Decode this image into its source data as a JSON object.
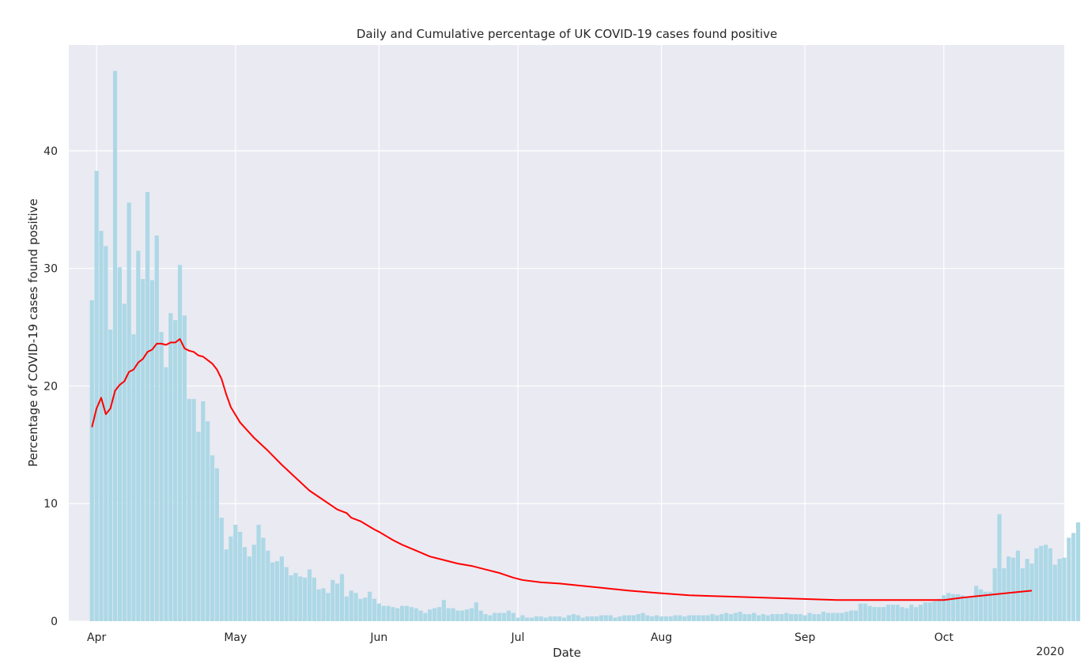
{
  "chart_data": {
    "type": "bar",
    "title": "Daily and Cumulative percentage of UK COVID-19 cases found positive",
    "xlabel": "Date",
    "ylabel": "Percentage of COVID-19 cases found positive",
    "year_label": "2020",
    "ylim": [
      0,
      49
    ],
    "yticks": [
      0,
      10,
      20,
      30,
      40
    ],
    "grid": true,
    "x_start": "2020-03-31",
    "x_end": "2020-10-20",
    "xlim": [
      "2020-03-26",
      "2020-10-27"
    ],
    "xticks": [
      {
        "date": "2020-04-01",
        "label": "Apr"
      },
      {
        "date": "2020-05-01",
        "label": "May"
      },
      {
        "date": "2020-06-01",
        "label": "Jun"
      },
      {
        "date": "2020-07-01",
        "label": "Jul"
      },
      {
        "date": "2020-08-01",
        "label": "Aug"
      },
      {
        "date": "2020-09-01",
        "label": "Sep"
      },
      {
        "date": "2020-10-01",
        "label": "Oct"
      }
    ],
    "colors": {
      "bars": "#add8e6",
      "line": "#ff0000",
      "background": "#eaeaf2",
      "grid": "#ffffff"
    },
    "series": [
      {
        "type": "bar",
        "values": [
          27.3,
          38.3,
          33.2,
          31.9,
          24.8,
          46.8,
          30.1,
          27.0,
          35.6,
          24.4,
          31.5,
          29.1,
          36.5,
          29.0,
          32.8,
          24.6,
          21.6,
          26.2,
          25.6,
          30.3,
          26.0,
          18.9,
          18.9,
          16.1,
          18.7,
          17.0,
          14.1,
          13.0,
          8.8,
          6.1,
          7.2,
          8.2,
          7.6,
          6.3,
          5.5,
          6.5,
          8.2,
          7.1,
          6.0,
          5.0,
          5.1,
          5.5,
          4.6,
          3.9,
          4.1,
          3.8,
          3.7,
          4.4,
          3.7,
          2.7,
          2.8,
          2.4,
          3.5,
          3.2,
          4.0,
          2.1,
          2.6,
          2.4,
          1.9,
          2.0,
          2.5,
          1.9,
          1.5,
          1.3,
          1.3,
          1.2,
          1.1,
          1.3,
          1.3,
          1.2,
          1.1,
          0.9,
          0.7,
          1.0,
          1.1,
          1.2,
          1.8,
          1.1,
          1.1,
          0.9,
          0.9,
          1.0,
          1.1,
          1.6,
          0.9,
          0.6,
          0.5,
          0.7,
          0.7,
          0.7,
          0.9,
          0.7,
          0.3,
          0.5,
          0.3,
          0.3,
          0.4,
          0.4,
          0.3,
          0.4,
          0.4,
          0.4,
          0.3,
          0.5,
          0.6,
          0.5,
          0.3,
          0.4,
          0.4,
          0.4,
          0.5,
          0.5,
          0.5,
          0.3,
          0.4,
          0.5,
          0.5,
          0.5,
          0.6,
          0.7,
          0.5,
          0.4,
          0.5,
          0.4,
          0.4,
          0.4,
          0.5,
          0.5,
          0.4,
          0.5,
          0.5,
          0.5,
          0.5,
          0.5,
          0.6,
          0.5,
          0.6,
          0.7,
          0.6,
          0.7,
          0.8,
          0.6,
          0.6,
          0.7,
          0.5,
          0.6,
          0.5,
          0.6,
          0.6,
          0.6,
          0.7,
          0.6,
          0.6,
          0.6,
          0.5,
          0.7,
          0.6,
          0.6,
          0.8,
          0.7,
          0.7,
          0.7,
          0.7,
          0.8,
          0.9,
          0.9,
          1.5,
          1.5,
          1.3,
          1.2,
          1.2,
          1.2,
          1.4,
          1.4,
          1.4,
          1.2,
          1.1,
          1.4,
          1.2,
          1.4,
          1.6,
          1.6,
          1.7,
          1.9,
          2.2,
          2.4,
          2.3,
          2.3,
          2.2,
          2.0,
          2.1,
          3.0,
          2.7,
          2.5,
          2.5,
          4.5,
          9.1,
          4.5,
          5.5,
          5.4,
          6.0,
          4.5,
          5.3,
          4.9,
          6.2,
          6.4,
          6.5,
          6.2,
          4.8,
          5.3,
          5.4,
          7.1,
          7.5,
          8.4
        ]
      },
      {
        "type": "line",
        "x": [
          "2020-03-31",
          "2020-04-01",
          "2020-04-02",
          "2020-04-03",
          "2020-04-04",
          "2020-04-05",
          "2020-04-06",
          "2020-04-07",
          "2020-04-08",
          "2020-04-09",
          "2020-04-10",
          "2020-04-11",
          "2020-04-12",
          "2020-04-13",
          "2020-04-14",
          "2020-04-15",
          "2020-04-16",
          "2020-04-17",
          "2020-04-18",
          "2020-04-19",
          "2020-04-20",
          "2020-04-21",
          "2020-04-22",
          "2020-04-23",
          "2020-04-24",
          "2020-04-25",
          "2020-04-26",
          "2020-04-27",
          "2020-04-28",
          "2020-04-29",
          "2020-04-30",
          "2020-05-02",
          "2020-05-05",
          "2020-05-08",
          "2020-05-11",
          "2020-05-14",
          "2020-05-17",
          "2020-05-20",
          "2020-05-23",
          "2020-05-25",
          "2020-05-26",
          "2020-05-28",
          "2020-05-31",
          "2020-06-01",
          "2020-06-04",
          "2020-06-06",
          "2020-06-09",
          "2020-06-12",
          "2020-06-15",
          "2020-06-18",
          "2020-06-21",
          "2020-06-24",
          "2020-06-27",
          "2020-06-30",
          "2020-07-01",
          "2020-07-02",
          "2020-07-06",
          "2020-07-10",
          "2020-07-15",
          "2020-07-20",
          "2020-07-25",
          "2020-07-31",
          "2020-08-07",
          "2020-08-15",
          "2020-08-23",
          "2020-08-31",
          "2020-09-08",
          "2020-09-16",
          "2020-09-24",
          "2020-10-01",
          "2020-10-05",
          "2020-10-10",
          "2020-10-15",
          "2020-10-20"
        ],
        "values": [
          16.5,
          18.1,
          19.0,
          17.6,
          18.1,
          19.6,
          20.1,
          20.4,
          21.2,
          21.4,
          22.0,
          22.3,
          22.9,
          23.1,
          23.6,
          23.6,
          23.5,
          23.7,
          23.7,
          24.0,
          23.2,
          23.0,
          22.9,
          22.6,
          22.5,
          22.2,
          21.9,
          21.4,
          20.6,
          19.3,
          18.2,
          16.9,
          15.6,
          14.5,
          13.3,
          12.2,
          11.1,
          10.3,
          9.5,
          9.2,
          8.8,
          8.5,
          7.8,
          7.6,
          6.9,
          6.5,
          6.0,
          5.5,
          5.2,
          4.9,
          4.7,
          4.4,
          4.1,
          3.7,
          3.6,
          3.5,
          3.3,
          3.2,
          3.0,
          2.8,
          2.6,
          2.4,
          2.2,
          2.1,
          2.0,
          1.9,
          1.8,
          1.8,
          1.8,
          1.8,
          2.0,
          2.2,
          2.4,
          2.6
        ]
      }
    ]
  }
}
